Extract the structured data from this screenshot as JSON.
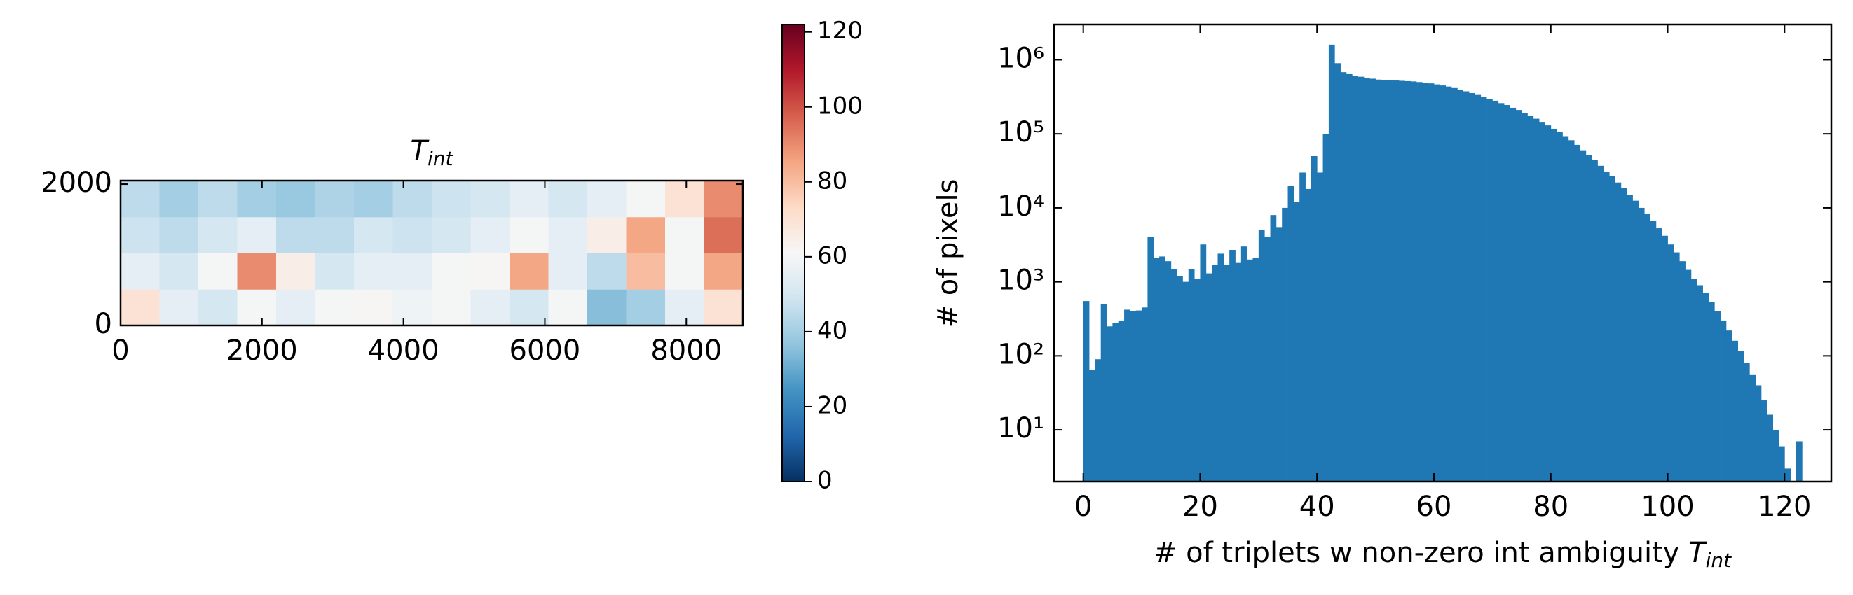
{
  "chart_data": [
    {
      "type": "heatmap",
      "title_symbol": "T",
      "title_subscript": "int",
      "xlim": [
        0,
        8800
      ],
      "ylim": [
        0,
        2050
      ],
      "xticks": [
        0,
        2000,
        4000,
        6000,
        8000
      ],
      "yticks": [
        0,
        2000
      ],
      "colormap": "RdBu_r",
      "z": [
        [
          70,
          55,
          50,
          60,
          55,
          60,
          62,
          58,
          60,
          55,
          50,
          60,
          35,
          40,
          55,
          70
        ],
        [
          55,
          50,
          60,
          90,
          65,
          50,
          55,
          55,
          60,
          62,
          85,
          55,
          45,
          80,
          60,
          85
        ],
        [
          48,
          45,
          50,
          55,
          45,
          45,
          50,
          48,
          50,
          55,
          60,
          55,
          65,
          85,
          60,
          95
        ],
        [
          45,
          40,
          45,
          40,
          38,
          42,
          40,
          45,
          48,
          50,
          55,
          50,
          55,
          60,
          70,
          90
        ]
      ],
      "colorbar": {
        "clim": [
          0,
          122
        ],
        "ticks": [
          0,
          20,
          40,
          60,
          80,
          100,
          120
        ]
      }
    },
    {
      "type": "histogram",
      "xlabel": "# of triplets w non-zero int ambiguity ",
      "xlabel_symbol": "T",
      "xlabel_subscript": "int",
      "ylabel": "# of pixels",
      "color": "#1f77b4",
      "log_y": true,
      "xlim": [
        -5,
        128
      ],
      "ylim": [
        2,
        3000000
      ],
      "xticks": [
        0,
        20,
        40,
        60,
        80,
        100,
        120
      ],
      "yticks": [
        {
          "value": 10,
          "label": "10¹"
        },
        {
          "value": 100,
          "label": "10²"
        },
        {
          "value": 1000,
          "label": "10³"
        },
        {
          "value": 10000,
          "label": "10⁴"
        },
        {
          "value": 100000,
          "label": "10⁵"
        },
        {
          "value": 1000000,
          "label": "10⁶"
        }
      ],
      "bins": [
        0,
        1,
        2,
        3,
        4,
        5,
        6,
        7,
        8,
        9,
        10,
        11,
        12,
        13,
        14,
        15,
        16,
        17,
        18,
        19,
        20,
        21,
        22,
        23,
        24,
        25,
        26,
        27,
        28,
        29,
        30,
        31,
        32,
        33,
        34,
        35,
        36,
        37,
        38,
        39,
        40,
        41,
        42,
        43,
        44,
        45,
        46,
        47,
        48,
        49,
        50,
        51,
        52,
        53,
        54,
        55,
        56,
        57,
        58,
        59,
        60,
        61,
        62,
        63,
        64,
        65,
        66,
        67,
        68,
        69,
        70,
        71,
        72,
        73,
        74,
        75,
        76,
        77,
        78,
        79,
        80,
        81,
        82,
        83,
        84,
        85,
        86,
        87,
        88,
        89,
        90,
        91,
        92,
        93,
        94,
        95,
        96,
        97,
        98,
        99,
        100,
        101,
        102,
        103,
        104,
        105,
        106,
        107,
        108,
        109,
        110,
        111,
        112,
        113,
        114,
        115,
        116,
        117,
        118,
        119,
        120,
        121,
        122,
        123
      ],
      "values": [
        550,
        65,
        90,
        500,
        250,
        280,
        300,
        420,
        400,
        410,
        450,
        4000,
        2100,
        2200,
        1900,
        1500,
        1200,
        1000,
        1500,
        1100,
        3200,
        1300,
        1700,
        2400,
        1700,
        2700,
        1800,
        3000,
        2000,
        2100,
        5000,
        4000,
        8000,
        5500,
        10000,
        20000,
        12000,
        30000,
        18000,
        50000,
        30000,
        100000,
        1600000,
        900000,
        680000,
        640000,
        610000,
        590000,
        570000,
        555000,
        540000,
        535000,
        530000,
        525000,
        520000,
        515000,
        510000,
        500000,
        490000,
        480000,
        465000,
        450000,
        435000,
        415000,
        395000,
        375000,
        355000,
        335000,
        315000,
        295000,
        280000,
        260000,
        245000,
        225000,
        210000,
        190000,
        175000,
        160000,
        145000,
        130000,
        117000,
        105000,
        93000,
        82000,
        71000,
        60000,
        52000,
        44000,
        37000,
        31000,
        27000,
        22000,
        18500,
        15000,
        12500,
        10000,
        8200,
        6600,
        5300,
        4200,
        3200,
        2500,
        1900,
        1450,
        1100,
        900,
        700,
        530,
        400,
        300,
        220,
        160,
        115,
        80,
        55,
        40,
        25,
        16,
        10,
        6,
        3,
        2,
        7
      ]
    }
  ]
}
